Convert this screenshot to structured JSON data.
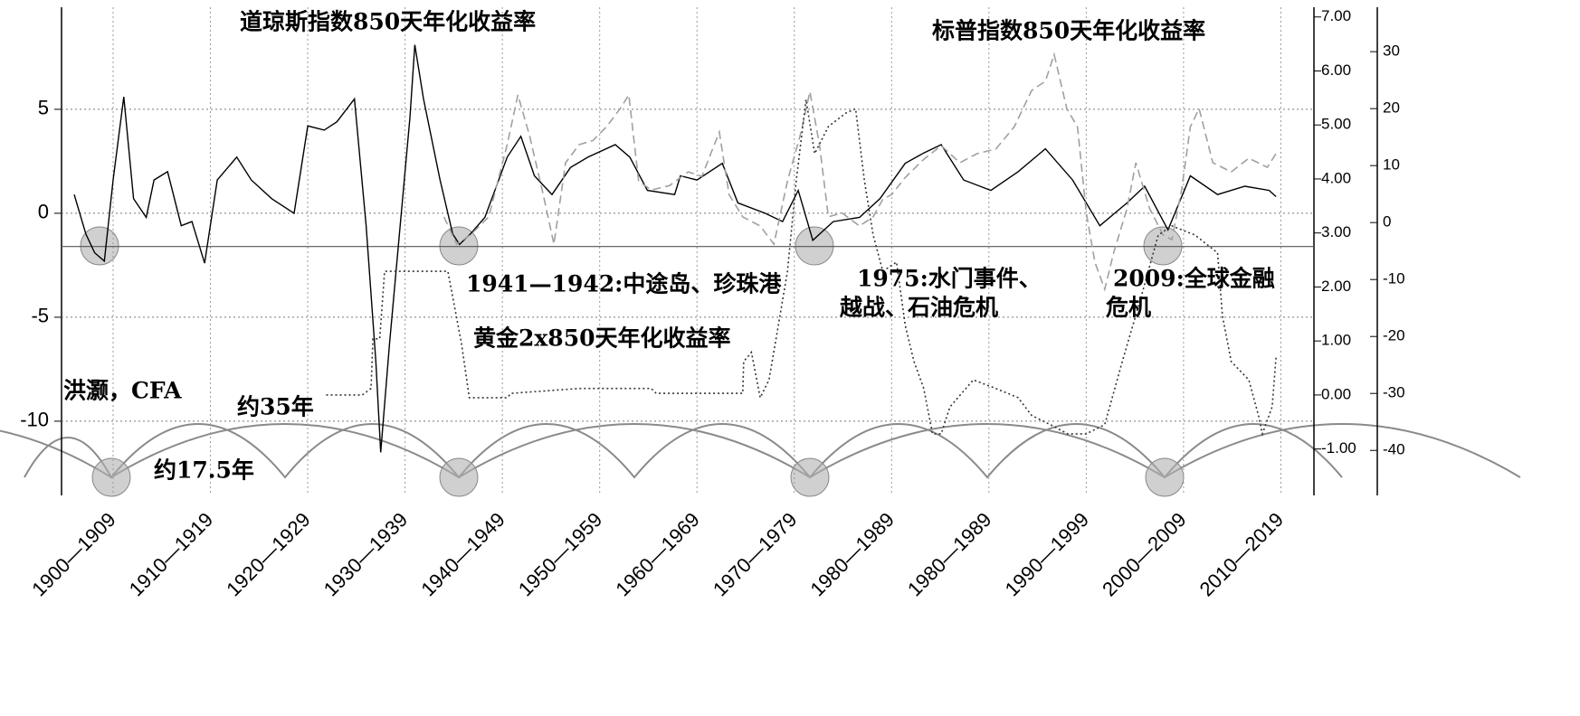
{
  "chart_data": {
    "type": "line",
    "xlim": [
      0.47,
      13.34
    ],
    "xticks": [
      {
        "value": 1,
        "label": "1900—1909"
      },
      {
        "value": 2,
        "label": "1910—1919"
      },
      {
        "value": 3,
        "label": "1920—1929"
      },
      {
        "value": 4,
        "label": "1930—1939"
      },
      {
        "value": 5,
        "label": "1940—1949"
      },
      {
        "value": 6,
        "label": "1950—1959"
      },
      {
        "value": 7,
        "label": "1960—1969"
      },
      {
        "value": 8,
        "label": "1970—1979"
      },
      {
        "value": 9,
        "label": "1980—1989"
      },
      {
        "value": 10,
        "label": "1980—1989"
      },
      {
        "value": 11,
        "label": "1990—1999"
      },
      {
        "value": 12,
        "label": "2000—2009"
      },
      {
        "value": 13,
        "label": "2010—2019"
      }
    ],
    "ylim": [
      -13.57,
      9.91
    ],
    "yticks": [
      5,
      0,
      -5,
      -10
    ],
    "y2lim": [
      -1.86,
      7.18
    ],
    "y2ticks": [
      {
        "value": 7,
        "label": "7.00"
      },
      {
        "value": 6,
        "label": "6.00"
      },
      {
        "value": 5,
        "label": "5.00"
      },
      {
        "value": 4,
        "label": "4.00"
      },
      {
        "value": 3,
        "label": "3.00"
      },
      {
        "value": 2,
        "label": "2.00"
      },
      {
        "value": 1,
        "label": "1.00"
      },
      {
        "value": 0,
        "label": "0.00"
      },
      {
        "value": -1,
        "label": "-1.00"
      }
    ],
    "y3lim": [
      -47.9,
      37.8
    ],
    "y3ticks": [
      30,
      20,
      10,
      0,
      -10,
      -20,
      -30,
      -40
    ],
    "grid": true,
    "reference_line": -1.6,
    "series": [
      {
        "name": "道琼斯指数850天年化收益率",
        "color": "#000000",
        "style": "solid",
        "axis": "y",
        "x": [
          0.6,
          0.72,
          0.81,
          0.91,
          1.0,
          1.11,
          1.21,
          1.34,
          1.42,
          1.56,
          1.7,
          1.81,
          1.94,
          2.07,
          2.27,
          2.42,
          2.63,
          2.86,
          3.0,
          3.17,
          3.3,
          3.48,
          3.6,
          3.7,
          3.75,
          3.84,
          3.95,
          4.05,
          4.1,
          4.19,
          4.36,
          4.49,
          4.56,
          4.67,
          4.82,
          5.05,
          5.19,
          5.33,
          5.51,
          5.7,
          5.88,
          6.16,
          6.31,
          6.49,
          6.77,
          6.83,
          7.0,
          7.26,
          7.42,
          7.7,
          7.88,
          8.04,
          8.19,
          8.4,
          8.67,
          8.88,
          9.14,
          9.33,
          9.51,
          9.74,
          10.02,
          10.3,
          10.58,
          10.86,
          11.14,
          11.42,
          11.6,
          11.84,
          12.07,
          12.35,
          12.63,
          12.88,
          12.95
        ],
        "values": [
          0.9,
          -1.0,
          -1.9,
          -2.3,
          1.6,
          5.6,
          0.7,
          -0.2,
          1.6,
          2.0,
          -0.6,
          -0.4,
          -2.4,
          1.6,
          2.7,
          1.6,
          0.7,
          0.0,
          4.2,
          4.0,
          4.4,
          5.5,
          -0.6,
          -7.1,
          -11.5,
          -6.3,
          -0.6,
          4.6,
          8.1,
          5.5,
          1.6,
          -1.0,
          -1.5,
          -1.0,
          -0.2,
          2.7,
          3.7,
          1.8,
          0.9,
          2.2,
          2.7,
          3.3,
          2.7,
          1.1,
          0.9,
          1.8,
          1.6,
          2.4,
          0.5,
          0.0,
          -0.4,
          1.1,
          -1.3,
          -0.4,
          -0.2,
          0.7,
          2.4,
          2.9,
          3.3,
          1.6,
          1.1,
          2.0,
          3.1,
          1.6,
          -0.6,
          0.5,
          1.3,
          -0.8,
          1.8,
          0.9,
          1.3,
          1.1,
          0.8
        ]
      },
      {
        "name": "标普指数850天年化收益率",
        "color": "#a0a0a0",
        "style": "dashed",
        "axis": "y3",
        "x": [
          4.4,
          4.53,
          4.67,
          4.86,
          5.05,
          5.16,
          5.28,
          5.42,
          5.53,
          5.65,
          5.79,
          5.93,
          6.07,
          6.21,
          6.3,
          6.4,
          6.53,
          6.72,
          6.91,
          7.05,
          7.23,
          7.33,
          7.47,
          7.65,
          7.79,
          7.93,
          8.07,
          8.16,
          8.26,
          8.35,
          8.49,
          8.67,
          8.81,
          8.91,
          9.0,
          9.14,
          9.33,
          9.51,
          9.7,
          9.88,
          10.07,
          10.26,
          10.44,
          10.58,
          10.67,
          10.8,
          10.91,
          11.0,
          11.09,
          11.19,
          11.28,
          11.42,
          11.51,
          11.65,
          11.79,
          11.88,
          11.98,
          12.07,
          12.16,
          12.3,
          12.49,
          12.67,
          12.86,
          12.95
        ],
        "values": [
          1.0,
          -3.8,
          -2.2,
          1.0,
          13.7,
          22.4,
          15.2,
          4.9,
          -3.8,
          10.5,
          13.7,
          14.4,
          16.8,
          20.0,
          22.4,
          7.3,
          5.7,
          6.5,
          8.9,
          8.1,
          15.9,
          4.9,
          1.0,
          -0.6,
          -3.8,
          7.3,
          15.9,
          23.0,
          13.5,
          1.0,
          1.7,
          -0.6,
          1.0,
          4.1,
          4.9,
          7.9,
          11.1,
          13.5,
          10.5,
          12.1,
          12.9,
          16.8,
          23.2,
          24.8,
          29.5,
          20.0,
          16.8,
          1.7,
          -7.0,
          -11.7,
          -5.4,
          2.5,
          10.5,
          2.5,
          -2.2,
          -3.0,
          5.7,
          16.8,
          20.0,
          10.5,
          8.9,
          11.3,
          9.7,
          12.1
        ]
      },
      {
        "name": "黄金2x850天年化收益率",
        "color": "#333333",
        "style": "dotted",
        "axis": "y2",
        "x": [
          3.19,
          3.56,
          3.65,
          3.67,
          3.74,
          3.79,
          4.44,
          4.58,
          4.66,
          5.05,
          5.09,
          5.79,
          6.53,
          6.58,
          7.47,
          7.48,
          7.56,
          7.65,
          7.74,
          7.82,
          7.93,
          8.02,
          8.12,
          8.21,
          8.35,
          8.53,
          8.63,
          8.72,
          8.81,
          8.91,
          9.05,
          9.14,
          9.23,
          9.33,
          9.42,
          9.51,
          9.6,
          9.84,
          10.07,
          10.3,
          10.44,
          10.63,
          10.81,
          11.0,
          11.19,
          11.37,
          11.56,
          11.74,
          11.88,
          12.12,
          12.35,
          12.4,
          12.49,
          12.67,
          12.77,
          12.81,
          12.91,
          12.95
        ],
        "values": [
          0.0,
          0.0,
          0.12,
          1.04,
          1.04,
          2.29,
          2.29,
          0.95,
          -0.05,
          -0.05,
          0.03,
          0.12,
          0.12,
          0.03,
          0.03,
          0.62,
          0.79,
          -0.05,
          0.28,
          1.12,
          2.29,
          3.97,
          5.47,
          4.47,
          4.97,
          5.22,
          5.3,
          3.97,
          2.96,
          2.29,
          2.46,
          1.29,
          0.62,
          0.12,
          -0.72,
          -0.72,
          -0.22,
          0.28,
          0.12,
          -0.05,
          -0.38,
          -0.55,
          -0.72,
          -0.72,
          -0.55,
          0.62,
          1.79,
          2.96,
          3.13,
          2.96,
          2.63,
          1.46,
          0.62,
          0.28,
          -0.38,
          -0.72,
          -0.22,
          0.7
        ]
      }
    ],
    "annotations": [
      "1941—1942:中途岛、珍珠港",
      "1975:水门事件、",
      "越战、石油危机",
      "2009:全球金融",
      "危机",
      "洪灏，CFA",
      "约35年",
      "约17.5年"
    ]
  }
}
